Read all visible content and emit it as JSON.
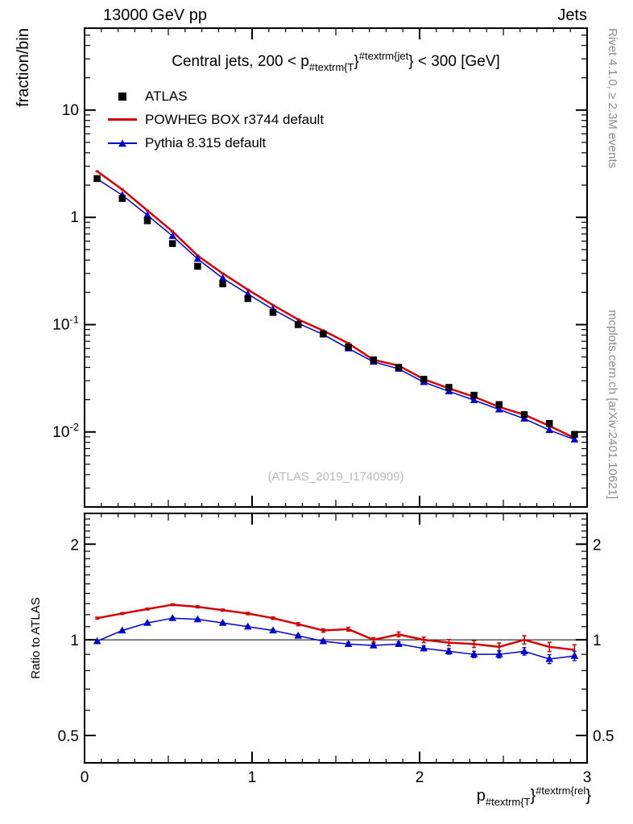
{
  "header": {
    "left_label": "13000 GeV pp",
    "right_label": "Jets"
  },
  "side_notes": {
    "top": "Rivet 4.1.0, ≥ 2.3M events",
    "bottom": "mcplots.cern.ch [arXiv:2401.10621]"
  },
  "watermark": "(ATLAS_2019_I1740909)",
  "main_panel": {
    "ylabel": "fraction/bin",
    "title": {
      "prefix": "Central jets, 200 < p",
      "sub": "#textrm{T",
      "mid": "}",
      "sup": "#textrm{jet",
      "suffix": "} < 300 [GeV]"
    }
  },
  "ratio_panel": {
    "ylabel": "Ratio to ATLAS"
  },
  "xaxis_label": {
    "base": "p",
    "sub": "#textrm{T",
    "mid": "}",
    "sup": "#textrm{rel",
    "suffix": "}"
  },
  "legend": [
    {
      "label": "ATLAS",
      "marker": "black-filled-square"
    },
    {
      "label": "POWHEG BOX r3744 default",
      "marker": "red-line"
    },
    {
      "label": "Pythia 8.315 default",
      "marker": "blue-line-triangle"
    }
  ],
  "colors": {
    "atlas": "#000000",
    "powheg": "#d40000",
    "pythia": "#0000cc",
    "watermark": "#b9b9b9",
    "side_note": "#8c8c8c"
  },
  "chart_data": {
    "type": "line",
    "title": "Central jets, 200 < pT^jet < 300 [GeV]",
    "xlabel": "pT^rel",
    "ylabel_main": "fraction/bin",
    "ylabel_ratio": "Ratio to ATLAS",
    "yscale": "log",
    "xlim": [
      0,
      3
    ],
    "ylim_main": [
      0.002,
      58
    ],
    "ylim_ratio": [
      0.41,
      2.5
    ],
    "grid": false,
    "legend_position": "top-left",
    "x": [
      0.075,
      0.225,
      0.375,
      0.525,
      0.675,
      0.825,
      0.975,
      1.125,
      1.275,
      1.425,
      1.575,
      1.725,
      1.875,
      2.025,
      2.175,
      2.325,
      2.475,
      2.625,
      2.775,
      2.925
    ],
    "series": [
      {
        "name": "ATLAS",
        "style": "black-squares",
        "values": [
          2.3,
          1.5,
          0.93,
          0.57,
          0.35,
          0.24,
          0.175,
          0.13,
          0.1,
          0.082,
          0.062,
          0.047,
          0.04,
          0.031,
          0.026,
          0.022,
          0.018,
          0.0145,
          0.012,
          0.0095
        ],
        "err": [
          0.02,
          0.02,
          0.02,
          0.02,
          0.02,
          0.02,
          0.025,
          0.025,
          0.025,
          0.03,
          0.03,
          0.03,
          0.035,
          0.035,
          0.04,
          0.04,
          0.045,
          0.045,
          0.05,
          0.05
        ]
      },
      {
        "name": "POWHEG BOX r3744 default",
        "style": "red-line",
        "values": [
          2.69,
          1.82,
          1.16,
          0.74,
          0.44,
          0.3,
          0.212,
          0.152,
          0.112,
          0.088,
          0.067,
          0.047,
          0.0416,
          0.031,
          0.0255,
          0.0213,
          0.0171,
          0.0145,
          0.0114,
          0.0088
        ]
      },
      {
        "name": "Pythia 8.315 default",
        "style": "blue-line-triangles",
        "values": [
          2.28,
          1.61,
          1.05,
          0.67,
          0.41,
          0.271,
          0.193,
          0.139,
          0.103,
          0.081,
          0.06,
          0.045,
          0.0388,
          0.0291,
          0.0239,
          0.0198,
          0.0162,
          0.0133,
          0.0104,
          0.0085
        ]
      }
    ],
    "ratio_series": [
      {
        "name": "POWHEG BOX r3744 default / ATLAS",
        "values": [
          1.17,
          1.21,
          1.25,
          1.29,
          1.27,
          1.24,
          1.21,
          1.17,
          1.12,
          1.07,
          1.08,
          1.0,
          1.04,
          1.0,
          0.98,
          0.97,
          0.95,
          1.0,
          0.95,
          0.93
        ],
        "err": [
          0.008,
          0.008,
          0.008,
          0.008,
          0.009,
          0.009,
          0.01,
          0.01,
          0.012,
          0.013,
          0.015,
          0.016,
          0.018,
          0.02,
          0.022,
          0.024,
          0.027,
          0.03,
          0.032,
          0.035
        ]
      },
      {
        "name": "Pythia 8.315 default / ATLAS",
        "values": [
          0.99,
          1.07,
          1.13,
          1.17,
          1.16,
          1.13,
          1.1,
          1.07,
          1.03,
          0.99,
          0.97,
          0.96,
          0.97,
          0.94,
          0.92,
          0.9,
          0.9,
          0.92,
          0.87,
          0.89
        ],
        "err": [
          0.006,
          0.006,
          0.006,
          0.007,
          0.007,
          0.008,
          0.008,
          0.009,
          0.01,
          0.011,
          0.013,
          0.014,
          0.016,
          0.017,
          0.019,
          0.021,
          0.023,
          0.025,
          0.028,
          0.03
        ]
      }
    ],
    "axes": {
      "x_major": [
        {
          "v": 0,
          "label": "0"
        },
        {
          "v": 1,
          "label": "1"
        },
        {
          "v": 2,
          "label": "2"
        },
        {
          "v": 3,
          "label": "3"
        }
      ],
      "y_main_major": [
        {
          "v": 10,
          "base": "10",
          "exp": ""
        },
        {
          "v": 1,
          "base": "1",
          "exp": ""
        },
        {
          "v": 0.1,
          "base": "10",
          "exp": "-1"
        },
        {
          "v": 0.01,
          "base": "10",
          "exp": "-2"
        }
      ],
      "y_ratio_major": [
        {
          "v": 2,
          "label": "2"
        },
        {
          "v": 1,
          "label": "1"
        },
        {
          "v": 0.5,
          "label": "0.5"
        }
      ]
    }
  }
}
